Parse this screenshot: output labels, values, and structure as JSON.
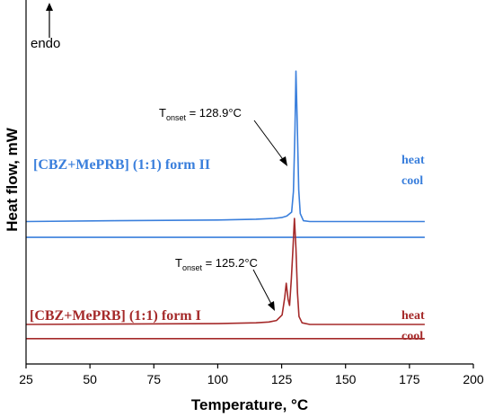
{
  "chart_data": {
    "type": "line",
    "xlabel": "Temperature, °C",
    "ylabel": "Heat flow, mW",
    "xlim": [
      25,
      200
    ],
    "xticks": [
      "25",
      "50",
      "75",
      "100",
      "125",
      "150",
      "175",
      "200"
    ],
    "endo_label": "endo",
    "colors": {
      "form_II": "#3a7fdc",
      "form_I": "#a52a2a",
      "axis": "#000000"
    },
    "groups": [
      {
        "name": "[CBZ+MePRB] (1:1) form II",
        "color": "#3a7fdc",
        "onset_label": {
          "prefix": "T",
          "subscript": "onset",
          "value": " = 128.9°C",
          "temperature": 128.9
        },
        "curves": [
          {
            "mode": "heat",
            "x": [
              25,
              60,
              100,
              115,
              122,
              125,
              127,
              128.9,
              129.6,
              130.2,
              130.6,
              131.1,
              131.7,
              132.3,
              133.5,
              136,
              150,
              181
            ],
            "y": [
              0.7,
              0.705,
              0.71,
              0.715,
              0.72,
              0.725,
              0.735,
              0.76,
              0.89,
              1.28,
              1.65,
              1.33,
              0.9,
              0.75,
              0.705,
              0.7,
              0.7,
              0.7
            ]
          },
          {
            "mode": "cool",
            "x": [
              25,
              181
            ],
            "y": [
              0.6,
              0.6
            ]
          }
        ]
      },
      {
        "name": "[CBZ+MePRB] (1:1) form I",
        "color": "#a52a2a",
        "onset_label": {
          "prefix": "T",
          "subscript": "onset",
          "value": " = 125.2°C",
          "temperature": 125.2
        },
        "curves": [
          {
            "mode": "heat",
            "x": [
              25,
              60,
              100,
              115,
              120,
              123,
              125.2,
              126.2,
              126.8,
              127.5,
              128.1,
              128.8,
              129.4,
              130.0,
              130.6,
              131.2,
              131.8,
              133,
              136,
              150,
              181
            ],
            "y": [
              0.05,
              0.052,
              0.055,
              0.06,
              0.065,
              0.075,
              0.11,
              0.22,
              0.31,
              0.21,
              0.17,
              0.34,
              0.52,
              0.72,
              0.53,
              0.25,
              0.1,
              0.06,
              0.05,
              0.05,
              0.05
            ]
          },
          {
            "mode": "cool",
            "x": [
              25,
              181
            ],
            "y": [
              -0.04,
              -0.04
            ]
          }
        ]
      }
    ]
  }
}
